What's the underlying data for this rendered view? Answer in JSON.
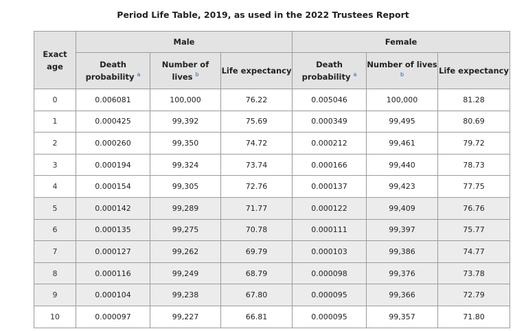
{
  "title": "Period Life Table, 2019, as used in the 2022 Trustees Report",
  "headers": {
    "age": "Exact age",
    "male": "Male",
    "female": "Female",
    "death_prob": "Death probability",
    "lives": "Number of lives",
    "life_exp": "Life expectancy",
    "note_a": "a",
    "note_b": "b"
  },
  "rows": [
    {
      "age": "0",
      "m_prob": "0.006081",
      "m_lives": "100,000",
      "m_exp": "76.22",
      "f_prob": "0.005046",
      "f_lives": "100,000",
      "f_exp": "81.28"
    },
    {
      "age": "1",
      "m_prob": "0.000425",
      "m_lives": "99,392",
      "m_exp": "75.69",
      "f_prob": "0.000349",
      "f_lives": "99,495",
      "f_exp": "80.69"
    },
    {
      "age": "2",
      "m_prob": "0.000260",
      "m_lives": "99,350",
      "m_exp": "74.72",
      "f_prob": "0.000212",
      "f_lives": "99,461",
      "f_exp": "79.72"
    },
    {
      "age": "3",
      "m_prob": "0.000194",
      "m_lives": "99,324",
      "m_exp": "73.74",
      "f_prob": "0.000166",
      "f_lives": "99,440",
      "f_exp": "78.73"
    },
    {
      "age": "4",
      "m_prob": "0.000154",
      "m_lives": "99,305",
      "m_exp": "72.76",
      "f_prob": "0.000137",
      "f_lives": "99,423",
      "f_exp": "77.75"
    },
    {
      "age": "5",
      "m_prob": "0.000142",
      "m_lives": "99,289",
      "m_exp": "71.77",
      "f_prob": "0.000122",
      "f_lives": "99,409",
      "f_exp": "76.76"
    },
    {
      "age": "6",
      "m_prob": "0.000135",
      "m_lives": "99,275",
      "m_exp": "70.78",
      "f_prob": "0.000111",
      "f_lives": "99,397",
      "f_exp": "75.77"
    },
    {
      "age": "7",
      "m_prob": "0.000127",
      "m_lives": "99,262",
      "m_exp": "69.79",
      "f_prob": "0.000103",
      "f_lives": "99,386",
      "f_exp": "74.77"
    },
    {
      "age": "8",
      "m_prob": "0.000116",
      "m_lives": "99,249",
      "m_exp": "68.79",
      "f_prob": "0.000098",
      "f_lives": "99,376",
      "f_exp": "73.78"
    },
    {
      "age": "9",
      "m_prob": "0.000104",
      "m_lives": "99,238",
      "m_exp": "67.80",
      "f_prob": "0.000095",
      "f_lives": "99,366",
      "f_exp": "72.79"
    },
    {
      "age": "10",
      "m_prob": "0.000097",
      "m_lives": "99,227",
      "m_exp": "66.81",
      "f_prob": "0.000095",
      "f_lives": "99,357",
      "f_exp": "71.80"
    }
  ]
}
